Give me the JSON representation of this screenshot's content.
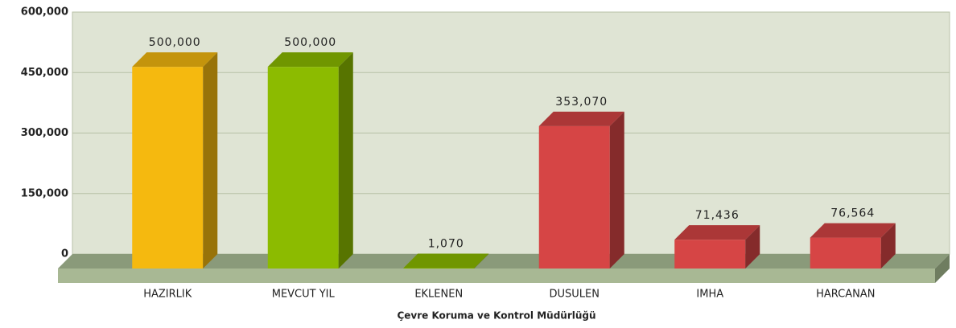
{
  "chart_data": {
    "type": "bar3d",
    "x_label": "Çevre Koruma ve Kontrol Müdürlüğü",
    "categories": [
      "HAZIRLIK",
      "MEVCUT YIL",
      "EKLENEN",
      "DUSULEN",
      "IMHA",
      "HARCANAN"
    ],
    "values": [
      500000,
      500000,
      1070,
      353070,
      71436,
      76564
    ],
    "value_labels": [
      "500,000",
      "500,000",
      "1,070",
      "353,070",
      "71,436",
      "76,564"
    ],
    "colors": [
      "#f5b90f",
      "#8cbb00",
      "#8cbb00",
      "#d64545",
      "#d64545",
      "#d64545"
    ],
    "ylim": [
      0,
      600000
    ],
    "yticks": [
      0,
      {
        "value": 150000,
        "label": "150,000"
      },
      {
        "value": 300000,
        "label": "300,000"
      },
      {
        "value": 450000,
        "label": "450,000"
      },
      {
        "value": 600000,
        "label": "600,000"
      }
    ],
    "grid": true
  }
}
